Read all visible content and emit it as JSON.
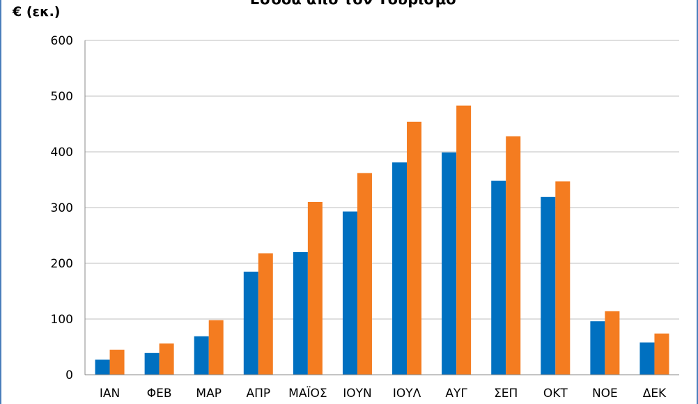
{
  "chart_data": {
    "type": "bar",
    "title": "Έσοδα από τον Τουρισμό",
    "ylabel": "€ (εκ.)",
    "xlabel": "",
    "ylim": [
      0,
      600
    ],
    "yticks": [
      0,
      100,
      200,
      300,
      400,
      500,
      600
    ],
    "grid": true,
    "legend": "none",
    "categories": [
      "ΙΑΝ",
      "ΦΕΒ",
      "ΜΑΡ",
      "ΑΠΡ",
      "ΜΑΪΟΣ",
      "ΙΟΥΝ",
      "ΙΟΥΛ",
      "ΑΥΓ",
      "ΣΕΠ",
      "ΟΚΤ",
      "ΝΟΕ",
      "ΔΕΚ"
    ],
    "series": [
      {
        "color": "#0070c0",
        "values": [
          27,
          39,
          69,
          185,
          220,
          293,
          381,
          399,
          348,
          319,
          96,
          58
        ]
      },
      {
        "color": "#f47c20",
        "values": [
          45,
          56,
          98,
          218,
          310,
          362,
          454,
          483,
          428,
          347,
          114,
          74
        ]
      }
    ]
  }
}
